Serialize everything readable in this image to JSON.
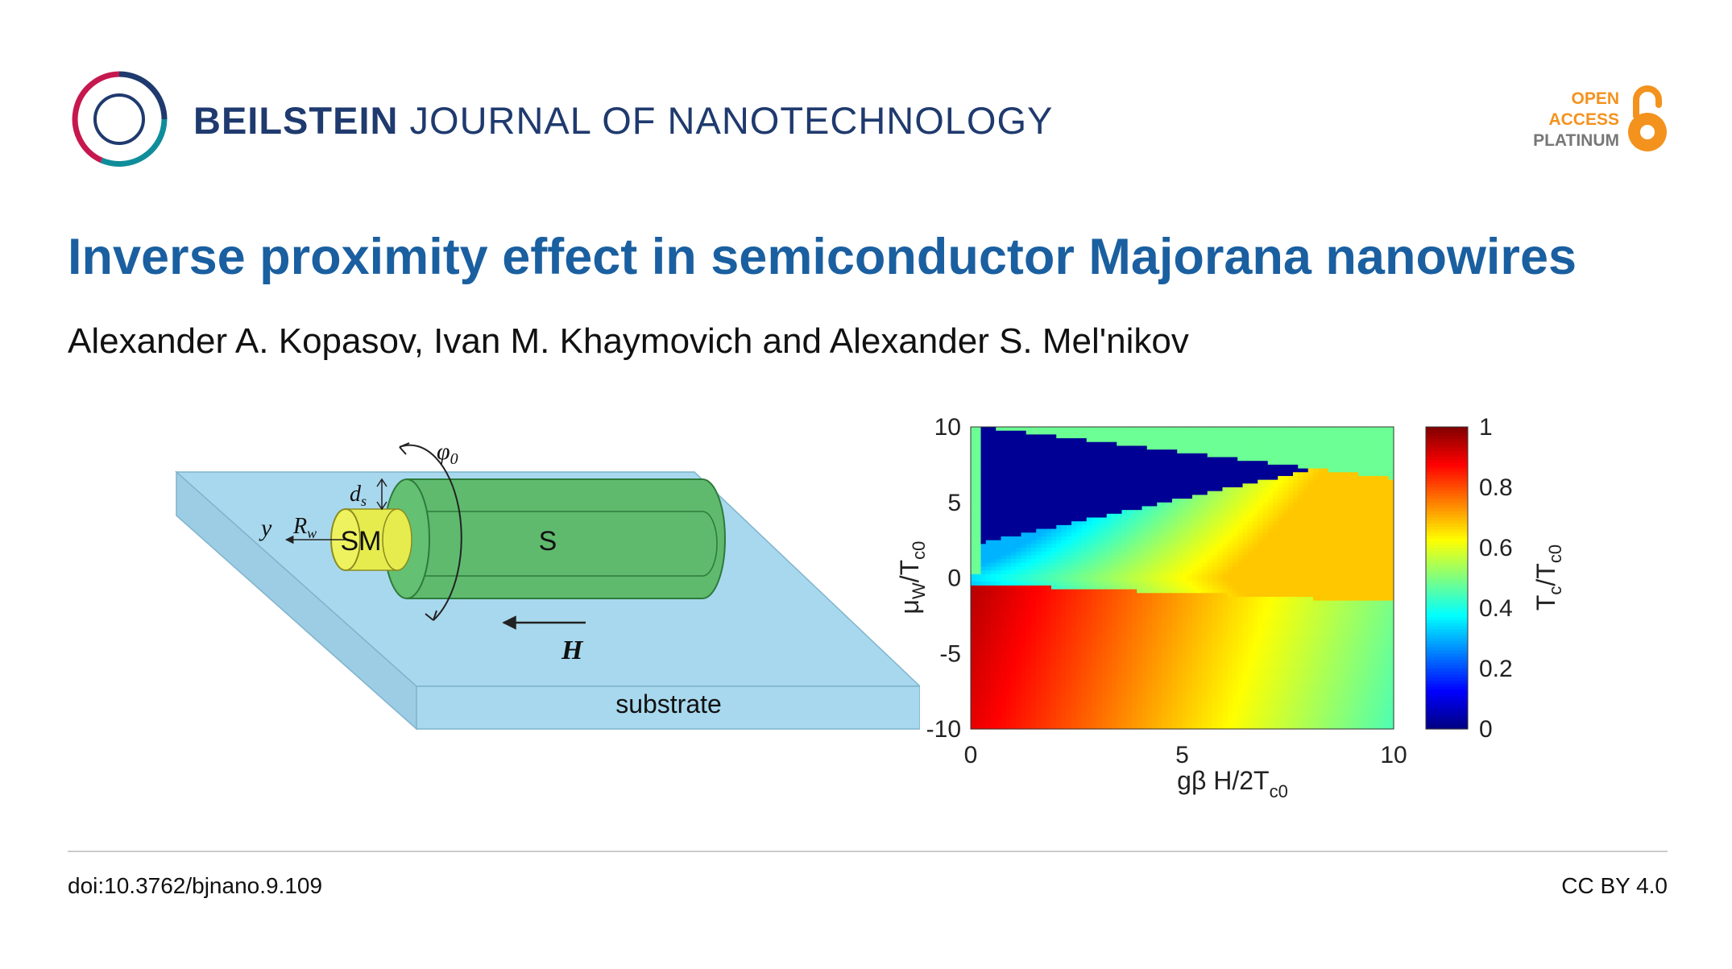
{
  "header": {
    "journal_bold": "BEILSTEIN",
    "journal_rest": "JOURNAL OF NANOTECHNOLOGY",
    "oa_line1": "OPEN",
    "oa_line2": "ACCESS",
    "oa_line3": "PLATINUM",
    "logo_icon": "beilstein-ring-logo",
    "oa_icon": "open-lock-icon"
  },
  "article": {
    "title": "Inverse proximity effect in semiconductor Majorana nanowires",
    "authors": "Alexander A. Kopasov, Ivan M. Khaymovich and Alexander S. Mel'nikov"
  },
  "schematic": {
    "label_sm": "SM",
    "label_s": "S",
    "label_h": "H",
    "label_substrate": "substrate",
    "label_y": "y",
    "label_rw": "R",
    "label_rw_sub": "w",
    "label_ds": "d",
    "label_ds_sub": "s",
    "label_phi": "φ",
    "label_phi_sub": "0"
  },
  "chart_data": {
    "type": "heatmap",
    "x_range": [
      0,
      10
    ],
    "y_range": [
      -10,
      10
    ],
    "x_ticks": [
      "0",
      "5",
      "10"
    ],
    "y_ticks": [
      "10",
      "5",
      "0",
      "-5",
      "-10"
    ],
    "xlabel_main": "gβ H/2T",
    "xlabel_sub": "c0",
    "ylabel_main": "μ",
    "ylabel_sub1": "W",
    "ylabel_mid": "/T",
    "ylabel_sub2": "c0",
    "colorbar_range": [
      0,
      1
    ],
    "colorbar_ticks": [
      "1",
      "0.8",
      "0.6",
      "0.4",
      "0.2",
      "0"
    ],
    "colorbar_label_main": "T",
    "colorbar_label_sub1": "c",
    "colorbar_label_mid": "/T",
    "colorbar_label_sub2": "c0",
    "colormap": "jet"
  },
  "footer": {
    "doi": "doi:10.3762/bjnano.9.109",
    "license": "CC BY 4.0"
  },
  "colors": {
    "journal": "#1f3a6e",
    "title": "#1a5fa0",
    "oa_orange": "#f4921e",
    "substrate": "#a8d8ee",
    "superconductor": "#5fba6e",
    "semiconductor": "#e6ec4e"
  }
}
